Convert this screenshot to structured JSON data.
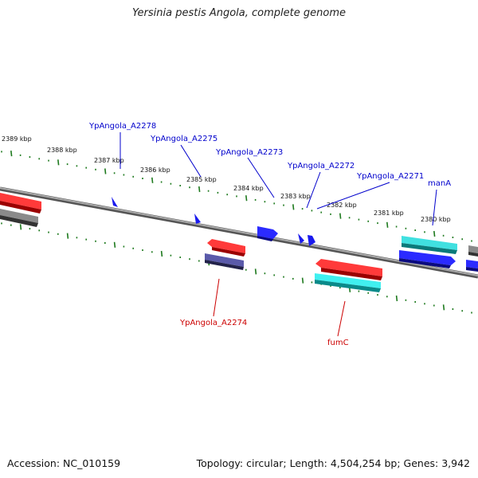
{
  "header": {
    "title": "Yersinia pestis Angola, complete genome"
  },
  "footer": {
    "accession": "Accession: NC_010159",
    "topology": "Topology: circular; Length: 4,504,254 bp; Genes: 3,942"
  },
  "colors": {
    "backbone": "#7a7a7a",
    "tick": "#1e7a1e",
    "forward_label": "#0000cc",
    "reverse_label": "#cc0000",
    "gene_red": "#ee1111",
    "gene_blue": "#1a1aee",
    "gene_cyan": "#1fd8d8",
    "gene_gray": "#666666",
    "gene_navy": "#4a4a99"
  },
  "ruler": {
    "labels": [
      "2389 kbp",
      "2388 kbp",
      "2387 kbp",
      "2386 kbp",
      "2385 kbp",
      "2384 kbp",
      "2383 kbp",
      "2382 kbp",
      "2381 kbp",
      "2380 kbp"
    ]
  },
  "gene_labels": {
    "forward": [
      "YpAngola_A2278",
      "YpAngola_A2275",
      "YpAngola_A2273",
      "YpAngola_A2272",
      "YpAngola_A2271",
      "manA"
    ],
    "reverse": [
      "YpAngola_A2274",
      "fumC"
    ]
  }
}
